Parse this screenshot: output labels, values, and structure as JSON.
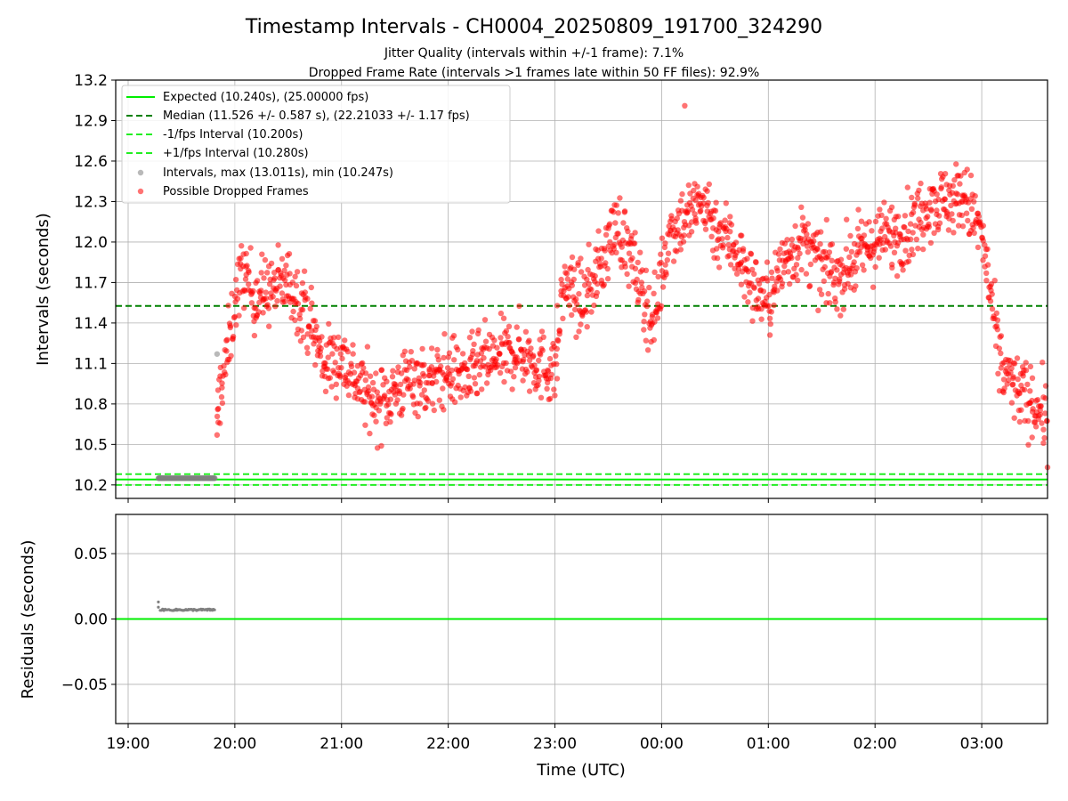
{
  "figure": {
    "title": "Timestamp Intervals - CH0004_20250809_191700_324290",
    "subtitle_1": "Jitter Quality (intervals within +/-1 frame): 7.1%",
    "subtitle_2": "Dropped Frame Rate (intervals >1 frames late within 50 FF files): 92.9%"
  },
  "colors": {
    "expected": "#00ee00",
    "median": "#008000",
    "fps_band": "#22ee22",
    "intervals": "#808080",
    "dropped": "#ff0000",
    "grid": "#b0b0b0"
  },
  "chart_data": [
    {
      "type": "scatter",
      "name": "intervals",
      "xlabel": "",
      "ylabel": "Intervals (seconds)",
      "xlim": [
        "18:53",
        "03:37"
      ],
      "ylim": [
        10.1,
        13.2
      ],
      "x_ticks": [
        "19:00",
        "20:00",
        "21:00",
        "22:00",
        "23:00",
        "00:00",
        "01:00",
        "02:00",
        "03:00"
      ],
      "y_ticks": [
        "10.2",
        "10.5",
        "10.8",
        "11.1",
        "11.4",
        "11.7",
        "12.0",
        "12.3",
        "12.6",
        "12.9",
        "13.2"
      ],
      "grid": true,
      "legend_position": "top-left",
      "legend": [
        "Expected (10.240s), (25.00000 fps)",
        "Median (11.526 +/- 0.587 s), (22.21033 +/- 1.17 fps)",
        "-1/fps Interval (10.200s)",
        "+1/fps Interval (10.280s)",
        "Intervals, max (13.011s), min (10.247s)",
        "Possible Dropped Frames"
      ],
      "reference_lines": {
        "expected": 10.24,
        "median": 11.526,
        "minus_one_fps": 10.2,
        "plus_one_fps": 10.28
      },
      "series": [
        {
          "name": "Intervals",
          "points": [
            [
              "19:17",
              10.25
            ],
            [
              "19:20",
              10.25
            ],
            [
              "19:25",
              10.25
            ],
            [
              "19:30",
              10.25
            ],
            [
              "19:35",
              10.25
            ],
            [
              "19:40",
              10.25
            ],
            [
              "19:45",
              10.25
            ],
            [
              "19:49",
              10.25
            ],
            [
              "19:50",
              11.17
            ]
          ]
        },
        {
          "name": "Possible Dropped Frames",
          "points": [
            [
              "19:50",
              10.57
            ],
            [
              "19:51",
              10.8
            ],
            [
              "19:52",
              10.95
            ],
            [
              "19:55",
              11.1
            ],
            [
              "20:00",
              11.55
            ],
            [
              "20:05",
              11.8
            ],
            [
              "20:10",
              11.6
            ],
            [
              "20:20",
              11.65
            ],
            [
              "20:30",
              11.7
            ],
            [
              "20:40",
              11.5
            ],
            [
              "20:50",
              11.1
            ],
            [
              "21:00",
              11.15
            ],
            [
              "21:10",
              10.95
            ],
            [
              "21:20",
              10.8
            ],
            [
              "21:30",
              10.9
            ],
            [
              "21:40",
              11.0
            ],
            [
              "21:50",
              10.95
            ],
            [
              "22:00",
              11.05
            ],
            [
              "22:10",
              11.0
            ],
            [
              "22:20",
              11.1
            ],
            [
              "22:30",
              11.15
            ],
            [
              "22:40",
              11.2
            ],
            [
              "22:50",
              11.1
            ],
            [
              "23:00",
              11.05
            ],
            [
              "23:05",
              11.7
            ],
            [
              "23:15",
              11.55
            ],
            [
              "23:25",
              11.8
            ],
            [
              "23:35",
              12.15
            ],
            [
              "23:45",
              11.8
            ],
            [
              "23:55",
              11.4
            ],
            [
              "00:05",
              12.1
            ],
            [
              "00:15",
              12.2
            ],
            [
              "00:25",
              12.3
            ],
            [
              "00:30",
              12.1
            ],
            [
              "00:40",
              12.0
            ],
            [
              "00:50",
              11.7
            ],
            [
              "01:00",
              11.55
            ],
            [
              "01:10",
              11.9
            ],
            [
              "01:20",
              12.0
            ],
            [
              "01:30",
              11.8
            ],
            [
              "01:40",
              11.75
            ],
            [
              "01:50",
              11.9
            ],
            [
              "02:00",
              12.0
            ],
            [
              "02:10",
              12.05
            ],
            [
              "02:20",
              12.1
            ],
            [
              "02:30",
              12.3
            ],
            [
              "02:40",
              12.3
            ],
            [
              "02:50",
              12.35
            ],
            [
              "03:00",
              12.05
            ],
            [
              "03:05",
              11.6
            ],
            [
              "03:10",
              11.1
            ],
            [
              "03:20",
              10.9
            ],
            [
              "03:30",
              10.8
            ],
            [
              "03:37",
              10.7
            ]
          ],
          "extremes": [
            [
              "00:13",
              13.01
            ],
            [
              "19:50",
              10.57
            ],
            [
              "03:37",
              10.33
            ]
          ]
        }
      ]
    },
    {
      "type": "scatter",
      "name": "residuals",
      "xlabel": "Time (UTC)",
      "ylabel": "Residuals (seconds)",
      "xlim": [
        "18:53",
        "03:37"
      ],
      "ylim": [
        -0.08,
        0.08
      ],
      "x_ticks": [
        "19:00",
        "20:00",
        "21:00",
        "22:00",
        "23:00",
        "00:00",
        "01:00",
        "02:00",
        "03:00"
      ],
      "y_ticks": [
        "0.05",
        "0.00",
        "−0.05"
      ],
      "grid": true,
      "reference_lines": {
        "zero": 0.0
      },
      "series": [
        {
          "name": "Residuals",
          "points": [
            [
              "19:17",
              0.013
            ],
            [
              "19:17",
              0.009
            ],
            [
              "19:18",
              0.007
            ],
            [
              "19:25",
              0.007
            ],
            [
              "19:30",
              0.007
            ],
            [
              "19:35",
              0.007
            ],
            [
              "19:40",
              0.007
            ],
            [
              "19:45",
              0.007
            ],
            [
              "19:49",
              0.007
            ]
          ]
        }
      ]
    }
  ]
}
